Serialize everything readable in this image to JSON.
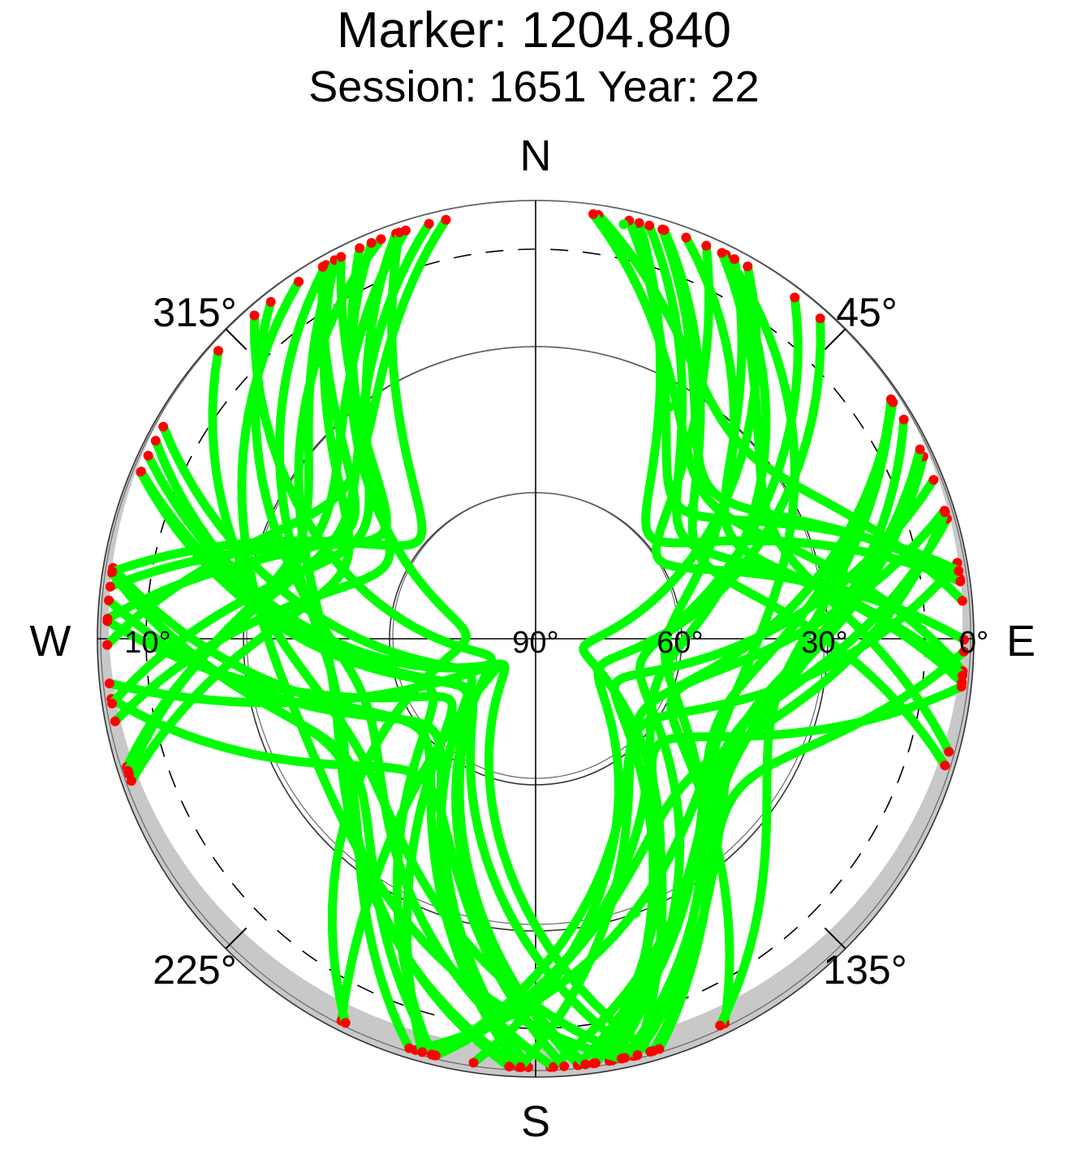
{
  "chart_data": {
    "type": "scatter",
    "projection": "polar-skyplot",
    "title": "Marker: 1204.840",
    "subtitle": "Session: 1651 Year: 22",
    "compass": {
      "north": "N",
      "south": "S",
      "east": "E",
      "west": "W"
    },
    "azimuth_labels": [
      {
        "azimuth": 315,
        "text": "315°"
      },
      {
        "azimuth": 45,
        "text": "45°"
      },
      {
        "azimuth": 225,
        "text": "225°"
      },
      {
        "azimuth": 135,
        "text": "135°"
      }
    ],
    "elevation_labels": [
      {
        "elevation": 90,
        "text": "90°"
      },
      {
        "elevation": 60,
        "text": "60°"
      },
      {
        "elevation": 30,
        "text": "30°"
      },
      {
        "elevation": 0,
        "text": "0°"
      },
      {
        "elevation": 10,
        "text": "10°",
        "side": "west"
      }
    ],
    "elevation_rings": [
      0,
      30,
      60
    ],
    "cutoff_elevation": 10,
    "grid": true,
    "colors": {
      "track": "#00ff00",
      "low_elevation_point": "#ff0000",
      "mask": "#c8c8c8",
      "grid": "#000000"
    },
    "series": [
      {
        "name": "",
        "points": [
          {
            "az": 12,
            "el": 3
          },
          {
            "az": 20,
            "el": 18
          },
          {
            "az": 30,
            "el": 35
          },
          {
            "az": 50,
            "el": 48
          },
          {
            "az": 80,
            "el": 55
          },
          {
            "az": 120,
            "el": 48
          },
          {
            "az": 160,
            "el": 30
          }
        ]
      }
    ]
  }
}
